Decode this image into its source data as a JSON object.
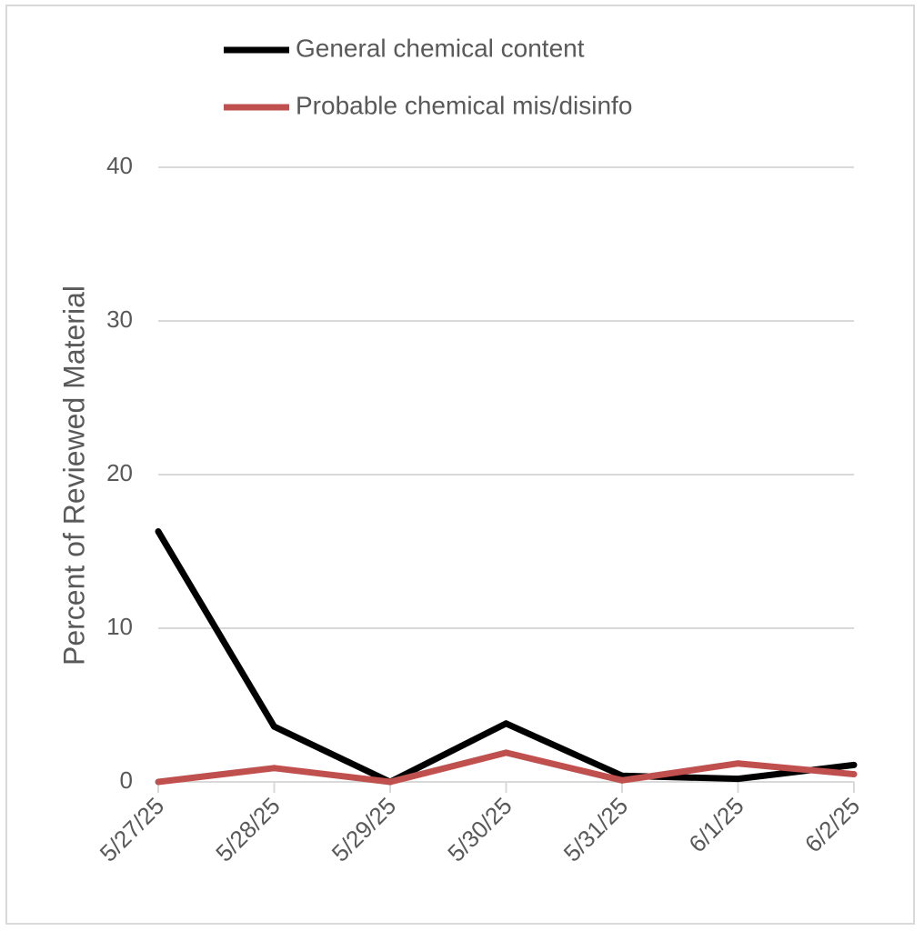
{
  "chart_data": {
    "type": "line",
    "title": "",
    "xlabel": "",
    "ylabel": "Percent of Reviewed Material",
    "categories": [
      "5/27/25",
      "5/28/25",
      "5/29/25",
      "5/30/25",
      "5/31/25",
      "6/1/25",
      "6/2/25"
    ],
    "ylim": [
      0,
      40
    ],
    "yticks": [
      "0",
      "10",
      "20",
      "30",
      "40"
    ],
    "grid": true,
    "legend_position": "top",
    "series": [
      {
        "name": "General chemical content",
        "color": "#000000",
        "values": [
          16.3,
          3.6,
          0.0,
          3.8,
          0.4,
          0.2,
          1.1
        ]
      },
      {
        "name": "Probable chemical mis/disinfo",
        "color": "#c0504d",
        "values": [
          0.0,
          0.9,
          0.0,
          1.9,
          0.1,
          1.2,
          0.5
        ]
      }
    ]
  }
}
